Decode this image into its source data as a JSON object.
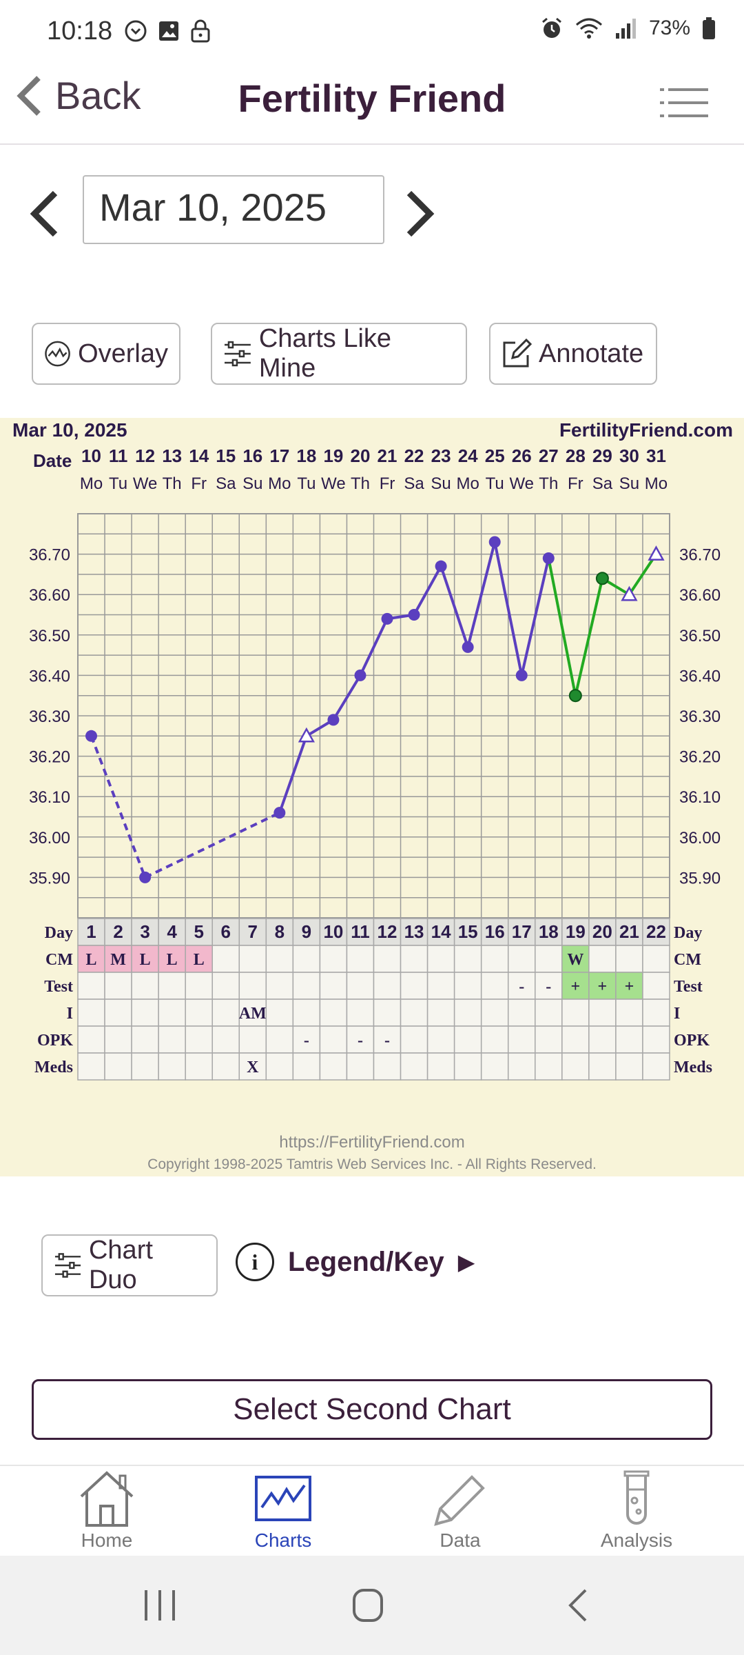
{
  "status_bar": {
    "time": "10:18",
    "battery": "73%",
    "left_icons": [
      "sync-icon",
      "image-icon",
      "lock-icon"
    ],
    "right_icons": [
      "alarm-icon",
      "wifi-icon",
      "signal-icon",
      "battery-icon"
    ]
  },
  "header": {
    "back_label": "Back",
    "title": "Fertility Friend"
  },
  "date_nav": {
    "value": "Mar 10, 2025"
  },
  "toolbar": {
    "overlay_label": "Overlay",
    "charts_like_mine_label": "Charts Like Mine",
    "annotate_label": "Annotate"
  },
  "chart_data": {
    "type": "line",
    "title": "Mar 10, 2025",
    "brand": "FertilityFriend.com",
    "date_row_label": "Date",
    "day_row_label": "Day",
    "dates": [
      "10",
      "11",
      "12",
      "13",
      "14",
      "15",
      "16",
      "17",
      "18",
      "19",
      "20",
      "21",
      "22",
      "23",
      "24",
      "25",
      "26",
      "27",
      "28",
      "29",
      "30",
      "31"
    ],
    "weekdays": [
      "Mo",
      "Tu",
      "We",
      "Th",
      "Fr",
      "Sa",
      "Su",
      "Mo",
      "Tu",
      "We",
      "Th",
      "Fr",
      "Sa",
      "Su",
      "Mo",
      "Tu",
      "We",
      "Th",
      "Fr",
      "Sa",
      "Su",
      "Mo"
    ],
    "cycle_days": [
      "1",
      "2",
      "3",
      "4",
      "5",
      "6",
      "7",
      "8",
      "9",
      "10",
      "11",
      "12",
      "13",
      "14",
      "15",
      "16",
      "17",
      "18",
      "19",
      "20",
      "21",
      "22"
    ],
    "y_ticks": [
      "36.70",
      "36.60",
      "36.50",
      "36.40",
      "36.30",
      "36.20",
      "36.10",
      "36.00",
      "35.90"
    ],
    "ylim": [
      35.8,
      36.8
    ],
    "temperatures": [
      36.25,
      null,
      35.9,
      null,
      null,
      null,
      null,
      36.06,
      36.25,
      36.29,
      36.4,
      36.54,
      36.55,
      36.67,
      36.47,
      36.73,
      36.4,
      36.69,
      36.35,
      36.64,
      36.6,
      36.7
    ],
    "markers": [
      "dot",
      "",
      "dot",
      "",
      "",
      "",
      "",
      "dot",
      "triangle",
      "dot",
      "dot",
      "dot",
      "dot",
      "dot",
      "dot",
      "dot",
      "dot",
      "dot",
      "dot-green",
      "dot-green",
      "triangle",
      "triangle"
    ],
    "segments_dashed_until_index": 7,
    "green_from_index": 17,
    "colors": {
      "line": "#5b3fbf",
      "line_green": "#22aa22",
      "panel_bg": "#f8f4d9",
      "grid": "#999999",
      "menses_cell": "#f2b8cc",
      "positive_cell": "#a6e08e",
      "text": "#2a1a4a"
    },
    "rows": [
      {
        "label": "CM",
        "values": [
          "L",
          "M",
          "L",
          "L",
          "L",
          "",
          "",
          "",
          "",
          "",
          "",
          "",
          "",
          "",
          "",
          "",
          "",
          "",
          "W",
          "",
          "",
          ""
        ],
        "highlight": [
          "menses",
          "menses",
          "menses",
          "menses",
          "menses",
          "",
          "",
          "",
          "",
          "",
          "",
          "",
          "",
          "",
          "",
          "",
          "",
          "",
          "positive",
          "",
          "",
          ""
        ]
      },
      {
        "label": "Test",
        "values": [
          "",
          "",
          "",
          "",
          "",
          "",
          "",
          "",
          "",
          "",
          "",
          "",
          "",
          "",
          "",
          "",
          "-",
          "-",
          "+",
          "+",
          "+",
          ""
        ],
        "highlight": [
          "",
          "",
          "",
          "",
          "",
          "",
          "",
          "",
          "",
          "",
          "",
          "",
          "",
          "",
          "",
          "",
          "",
          "",
          "positive",
          "positive",
          "positive",
          ""
        ]
      },
      {
        "label": "I",
        "values": [
          "",
          "",
          "",
          "",
          "",
          "",
          "AM",
          "",
          "",
          "",
          "",
          "",
          "",
          "",
          "",
          "",
          "",
          "",
          "",
          "",
          "",
          ""
        ],
        "highlight": []
      },
      {
        "label": "OPK",
        "values": [
          "",
          "",
          "",
          "",
          "",
          "",
          "",
          "",
          "-",
          "",
          "-",
          "-",
          "",
          "",
          "",
          "",
          "",
          "",
          "",
          "",
          "",
          ""
        ],
        "highlight": []
      },
      {
        "label": "Meds",
        "values": [
          "",
          "",
          "",
          "",
          "",
          "",
          "X",
          "",
          "",
          "",
          "",
          "",
          "",
          "",
          "",
          "",
          "",
          "",
          "",
          "",
          "",
          ""
        ],
        "highlight": []
      }
    ],
    "footer_url": "https://FertilityFriend.com",
    "footer_copyright": "Copyright 1998-2025 Tamtris Web Services Inc. - All Rights Reserved."
  },
  "lower": {
    "chart_duo_label": "Chart Duo",
    "legend_label": "Legend/Key",
    "legend_arrow": "▶",
    "select_second_label": "Select Second Chart"
  },
  "bottom_nav": {
    "items": [
      {
        "label": "Home",
        "icon": "home-icon"
      },
      {
        "label": "Charts",
        "icon": "chart-icon",
        "active": true
      },
      {
        "label": "Data",
        "icon": "pencil-icon"
      },
      {
        "label": "Analysis",
        "icon": "test-tube-icon"
      }
    ]
  },
  "system_nav": [
    "recent-apps-icon",
    "home-circle-icon",
    "back-icon"
  ]
}
